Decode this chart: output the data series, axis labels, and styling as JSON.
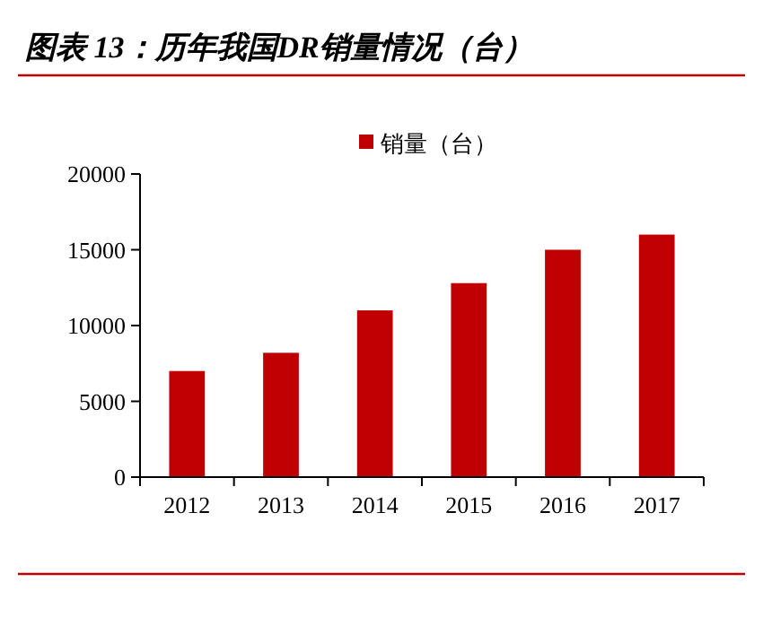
{
  "chart_data": {
    "type": "bar",
    "title": "图表 13：历年我国DR销量情况（台）",
    "categories": [
      "2012",
      "2013",
      "2014",
      "2015",
      "2016",
      "2017"
    ],
    "series": [
      {
        "name": "销量（台）",
        "color": "#c00000",
        "values": [
          7000,
          8200,
          11000,
          12800,
          15000,
          16000
        ]
      }
    ],
    "ylim": [
      0,
      20000
    ],
    "yticks": [
      0,
      5000,
      10000,
      15000,
      20000
    ],
    "legend": "top",
    "grid": false
  }
}
